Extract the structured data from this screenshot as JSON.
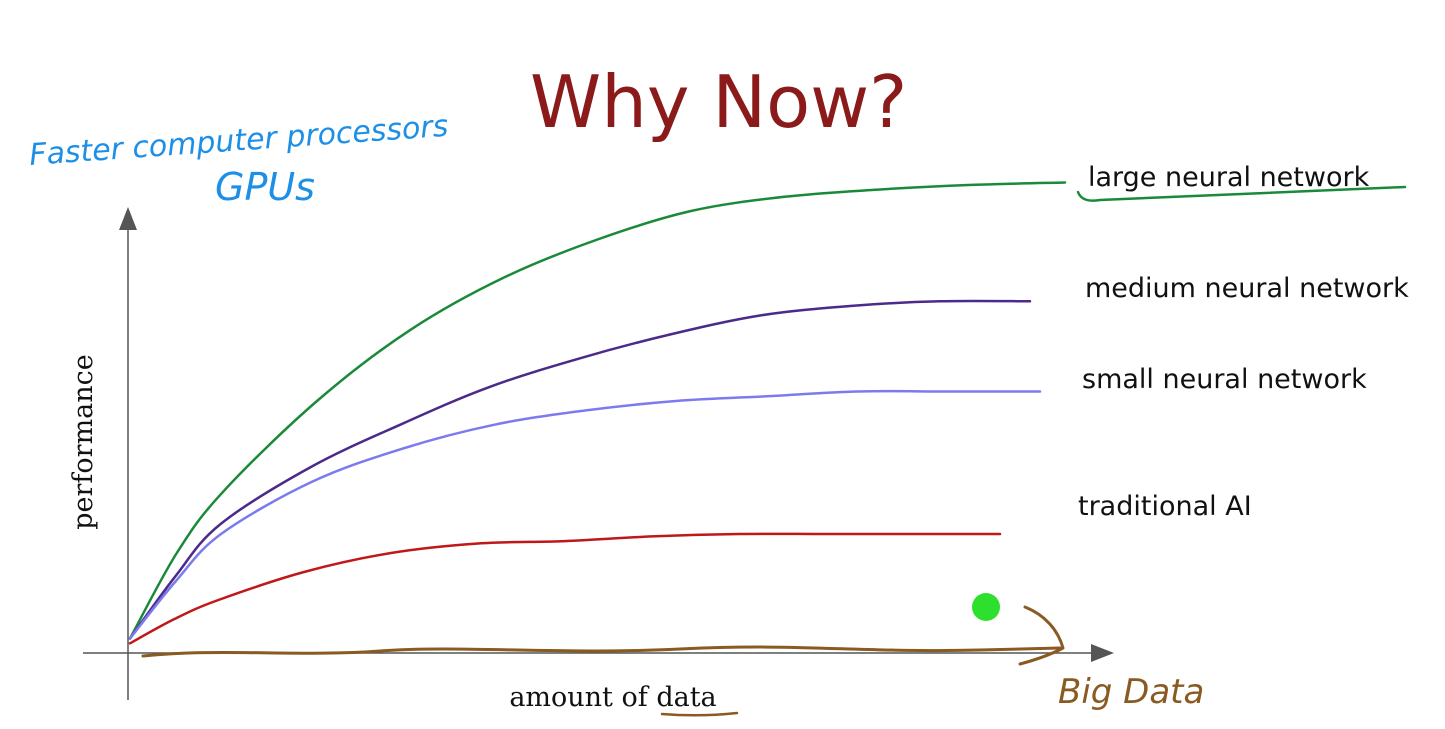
{
  "chart_data": {
    "type": "line",
    "title": "Why Now?",
    "xlabel": "amount of data",
    "ylabel": "performance",
    "x": [
      0,
      0.05,
      0.1,
      0.2,
      0.3,
      0.4,
      0.5,
      0.6,
      0.7,
      0.8,
      0.9,
      1.0
    ],
    "series": [
      {
        "name": "large neural network",
        "color": "#1a8a3a",
        "values": [
          0.02,
          0.2,
          0.33,
          0.52,
          0.67,
          0.78,
          0.86,
          0.92,
          0.95,
          0.965,
          0.975,
          0.98
        ]
      },
      {
        "name": "medium neural network",
        "color": "#4b2a8a",
        "values": [
          0.02,
          0.15,
          0.26,
          0.38,
          0.47,
          0.55,
          0.61,
          0.66,
          0.7,
          0.72,
          0.73,
          0.73
        ]
      },
      {
        "name": "small neural network",
        "color": "#7b7bef",
        "values": [
          0.02,
          0.14,
          0.24,
          0.35,
          0.42,
          0.47,
          0.5,
          0.52,
          0.53,
          0.54,
          0.54,
          0.54
        ]
      },
      {
        "name": "traditional AI",
        "color": "#c01818",
        "values": [
          0.01,
          0.06,
          0.1,
          0.16,
          0.2,
          0.22,
          0.225,
          0.235,
          0.24,
          0.24,
          0.24,
          0.24
        ]
      }
    ],
    "grid": false,
    "legend": "right, labels beside each curve"
  },
  "annotations": {
    "processors_line1": "Faster computer processors",
    "processors_line2": "GPUs",
    "big_data": "Big Data",
    "data_marker_color": "#2de02d",
    "annotation_blue": "#1d8fe6",
    "annotation_brown": "#8a5a22"
  }
}
